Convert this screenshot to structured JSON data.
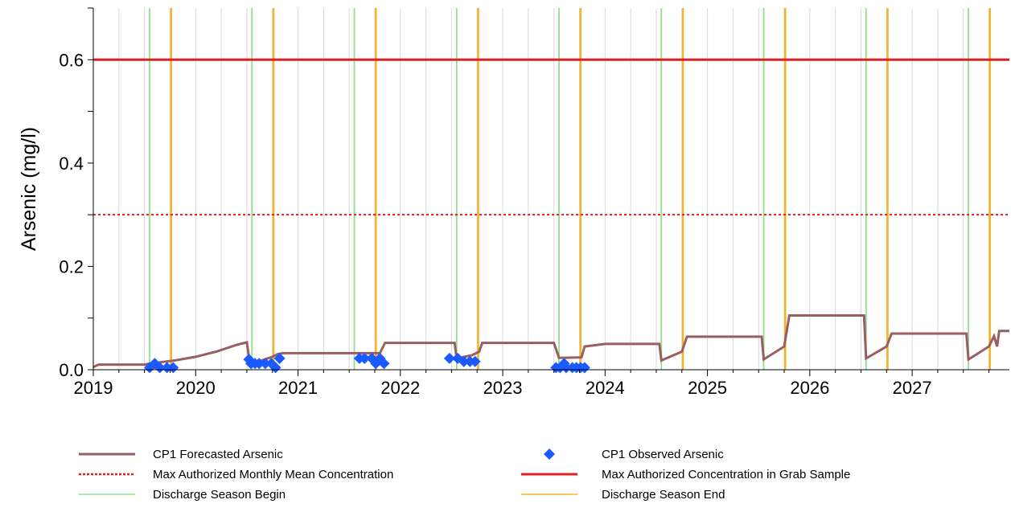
{
  "chart_data": {
    "type": "line",
    "title": "",
    "xlabel": "",
    "ylabel": "Arsenic (mg/l)",
    "xlim": [
      2019.0,
      2027.95
    ],
    "ylim": [
      0.0,
      0.7
    ],
    "x_ticks": [
      "2019",
      "2020",
      "2021",
      "2022",
      "2023",
      "2024",
      "2025",
      "2026",
      "2027"
    ],
    "y_ticks": [
      "0.0",
      "0.2",
      "0.4",
      "0.6"
    ],
    "grid": "vertical",
    "legend_position": "bottom",
    "series": [
      {
        "name": "CP1 Forecasted Arsenic",
        "kind": "line",
        "color": "#9b5e5e",
        "x": [
          2019.0,
          2019.05,
          2019.5,
          2019.55,
          2019.8,
          2020.0,
          2020.2,
          2020.4,
          2020.5,
          2020.53,
          2020.6,
          2020.75,
          2020.8,
          2020.85,
          2021.8,
          2021.85,
          2022.53,
          2022.55,
          2022.7,
          2022.77,
          2022.8,
          2023.5,
          2023.55,
          2023.77,
          2023.8,
          2024.0,
          2024.53,
          2024.55,
          2024.75,
          2024.8,
          2025.53,
          2025.55,
          2025.75,
          2025.8,
          2026.53,
          2026.55,
          2026.75,
          2026.8,
          2027.53,
          2027.55,
          2027.75,
          2027.8,
          2027.83,
          2027.85,
          2027.95
        ],
        "y": [
          0.005,
          0.01,
          0.01,
          0.012,
          0.018,
          0.025,
          0.035,
          0.048,
          0.053,
          0.012,
          0.015,
          0.025,
          0.03,
          0.032,
          0.032,
          0.052,
          0.052,
          0.022,
          0.028,
          0.035,
          0.052,
          0.052,
          0.023,
          0.024,
          0.045,
          0.05,
          0.05,
          0.018,
          0.035,
          0.064,
          0.064,
          0.02,
          0.045,
          0.105,
          0.105,
          0.022,
          0.045,
          0.07,
          0.07,
          0.02,
          0.045,
          0.065,
          0.045,
          0.075,
          0.075
        ]
      },
      {
        "name": "CP1 Observed Arsenic",
        "kind": "scatter",
        "color": "#1a5aff",
        "x": [
          2019.55,
          2019.6,
          2019.65,
          2019.72,
          2019.78,
          2020.52,
          2020.54,
          2020.58,
          2020.62,
          2020.68,
          2020.74,
          2020.78,
          2020.82,
          2021.6,
          2021.65,
          2021.72,
          2021.76,
          2021.8,
          2021.84,
          2022.48,
          2022.56,
          2022.62,
          2022.68,
          2022.73,
          2023.52,
          2023.56,
          2023.6,
          2023.62,
          2023.68,
          2023.72,
          2023.76,
          2023.8
        ],
        "y": [
          0.004,
          0.012,
          0.004,
          0.004,
          0.004,
          0.02,
          0.012,
          0.012,
          0.012,
          0.012,
          0.012,
          0.004,
          0.022,
          0.022,
          0.022,
          0.022,
          0.012,
          0.022,
          0.012,
          0.022,
          0.022,
          0.016,
          0.016,
          0.016,
          0.004,
          0.004,
          0.012,
          0.004,
          0.004,
          0.004,
          0.004,
          0.004
        ]
      },
      {
        "name": "Max Authorized Monthly Mean Concentration",
        "kind": "hline",
        "style": "dotted",
        "color": "#e02020",
        "y": 0.3
      },
      {
        "name": "Max Authorized Concentration in Grab Sample",
        "kind": "hline",
        "style": "solid",
        "color": "#e02020",
        "y": 0.6
      },
      {
        "name": "Discharge Season Begin",
        "kind": "vlines",
        "color": "#8fe08f",
        "x": [
          2019.55,
          2020.55,
          2021.55,
          2022.55,
          2023.55,
          2024.55,
          2025.55,
          2026.55,
          2027.55
        ]
      },
      {
        "name": "Discharge Season End",
        "kind": "vlines",
        "color": "#f5b325",
        "x": [
          2019.76,
          2020.76,
          2021.76,
          2022.76,
          2023.76,
          2024.76,
          2025.76,
          2026.76,
          2027.76
        ]
      }
    ]
  }
}
